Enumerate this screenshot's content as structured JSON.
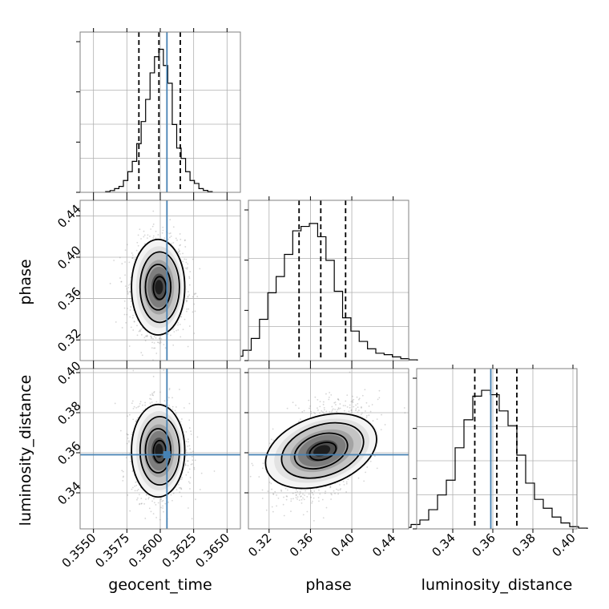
{
  "chart_data": {
    "type": "corner",
    "parameters": [
      {
        "name": "geocent_time",
        "label": "geocent_time",
        "range": [
          0.354,
          0.366
        ],
        "ticks": [
          "0.3550",
          "0.3575",
          "0.3600",
          "0.3625",
          "0.3650"
        ],
        "tick_values": [
          0.355,
          0.3575,
          0.36,
          0.3625,
          0.365
        ],
        "quantiles": [
          0.3584,
          0.3599,
          0.3615
        ],
        "truth": 0.3605,
        "mean": 0.3599,
        "sd": 0.00095
      },
      {
        "name": "phase",
        "label": "phase",
        "range": [
          0.3,
          0.455
        ],
        "ticks": [
          "0.32",
          "0.36",
          "0.40",
          "0.44"
        ],
        "tick_values": [
          0.32,
          0.36,
          0.4,
          0.44
        ],
        "quantiles": [
          0.349,
          0.37,
          0.394
        ],
        "truth": null,
        "mean": 0.371,
        "sd": 0.022
      },
      {
        "name": "luminosity_distance",
        "label": "luminosity_distance",
        "range": [
          0.322,
          0.402
        ],
        "ticks": [
          "0.34",
          "0.36",
          "0.38",
          "0.40"
        ],
        "tick_values": [
          0.34,
          0.36,
          0.38,
          0.4
        ],
        "quantiles": [
          0.351,
          0.362,
          0.372
        ],
        "truth": 0.359,
        "mean": 0.361,
        "sd": 0.011
      }
    ],
    "histograms": {
      "geocent_time": [
        0.005,
        0.012,
        0.025,
        0.04,
        0.08,
        0.14,
        0.21,
        0.33,
        0.48,
        0.63,
        0.81,
        0.92,
        0.97,
        0.86,
        0.74,
        0.46,
        0.3,
        0.23,
        0.14,
        0.08,
        0.06,
        0.025,
        0.013,
        0.005
      ],
      "phase": [
        0.015,
        0.03,
        0.07,
        0.15,
        0.28,
        0.46,
        0.57,
        0.72,
        0.88,
        0.91,
        0.93,
        0.84,
        0.68,
        0.47,
        0.29,
        0.2,
        0.13,
        0.08,
        0.05,
        0.04,
        0.025,
        0.013,
        0.005
      ],
      "luminosity_distance": [
        0.01,
        0.03,
        0.06,
        0.13,
        0.23,
        0.33,
        0.55,
        0.74,
        0.9,
        0.94,
        0.91,
        0.8,
        0.7,
        0.5,
        0.31,
        0.2,
        0.14,
        0.08,
        0.04,
        0.015,
        0.005
      ]
    },
    "correlations": {
      "phase|geocent_time": 0.0,
      "luminosity_distance|geocent_time": 0.0,
      "luminosity_distance|phase": 0.45
    },
    "truth_color": "#4682b4",
    "line_color": "#000000",
    "grid": true
  }
}
